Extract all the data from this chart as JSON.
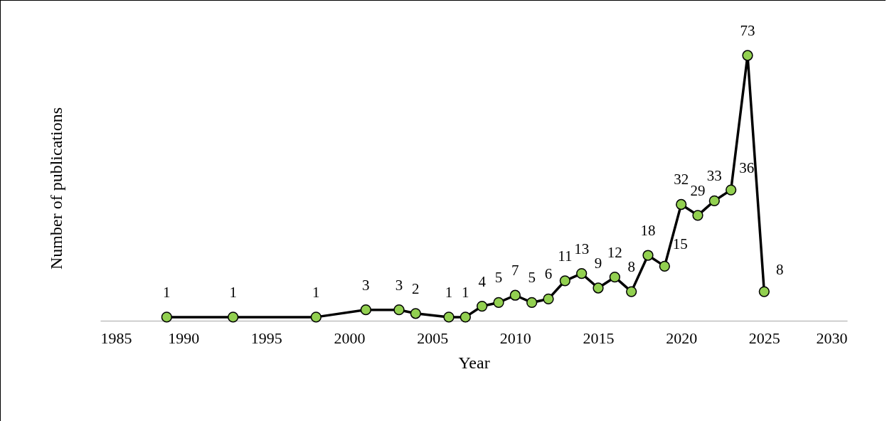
{
  "chart_data": {
    "type": "line",
    "xlabel": "Year",
    "ylabel": "Number of publications",
    "x": [
      1989,
      1993,
      1998,
      2001,
      2003,
      2004,
      2006,
      2007,
      2008,
      2009,
      2010,
      2011,
      2012,
      2013,
      2014,
      2015,
      2016,
      2017,
      2018,
      2019,
      2020,
      2021,
      2022,
      2023,
      2024,
      2025
    ],
    "series": [
      {
        "color": "#92d050",
        "values": [
          1,
          1,
          1,
          3,
          3,
          2,
          1,
          1,
          4,
          5,
          7,
          5,
          6,
          11,
          13,
          9,
          12,
          8,
          18,
          15,
          32,
          29,
          33,
          36,
          73,
          8
        ]
      }
    ],
    "xlim": [
      1985,
      2030
    ],
    "xticks": [
      1985,
      1990,
      1995,
      2000,
      2005,
      2010,
      2015,
      2020,
      2025,
      2030
    ],
    "marker": "circle",
    "line_style": "solid",
    "data_labels": true,
    "grid": false,
    "tick_labels": "x"
  }
}
